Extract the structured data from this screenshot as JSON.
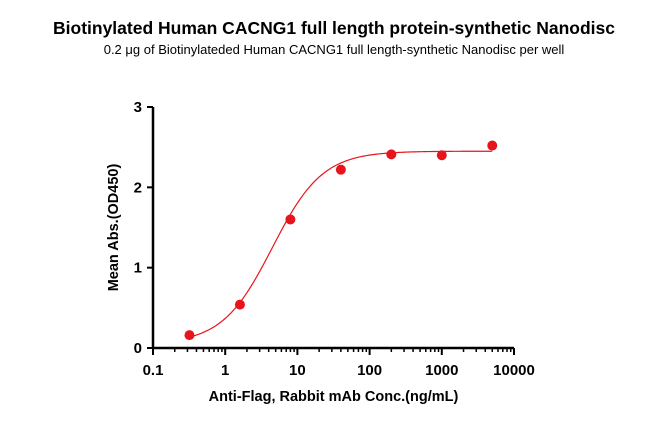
{
  "chart_data": {
    "type": "scatter",
    "title": "Biotinylated Human CACNG1 full length protein-synthetic Nanodisc",
    "subtitle": "0.2 μg of Biotinylateded Human CACNG1 full length-synthetic Nanodisc per well",
    "xlabel": "Anti-Flag, Rabbit mAb Conc.(ng/mL)",
    "ylabel": "Mean Abs.(OD450)",
    "x_scale": "log",
    "xlim": [
      0.1,
      10000
    ],
    "ylim": [
      0,
      3
    ],
    "x_ticks": [
      0.1,
      1,
      10,
      100,
      1000,
      10000
    ],
    "x_tick_labels": [
      "0.1",
      "1",
      "10",
      "100",
      "1000",
      "10000"
    ],
    "y_ticks": [
      0,
      1,
      2,
      3
    ],
    "y_tick_labels": [
      "0",
      "1",
      "2",
      "3"
    ],
    "grid": false,
    "series": [
      {
        "x": [
          0.32,
          1.6,
          8,
          40,
          200,
          1000,
          5000
        ],
        "y": [
          0.16,
          0.54,
          1.6,
          2.22,
          2.41,
          2.4,
          2.52
        ],
        "color": "#e8141b",
        "fit_curve": "sigmoidal"
      }
    ]
  }
}
